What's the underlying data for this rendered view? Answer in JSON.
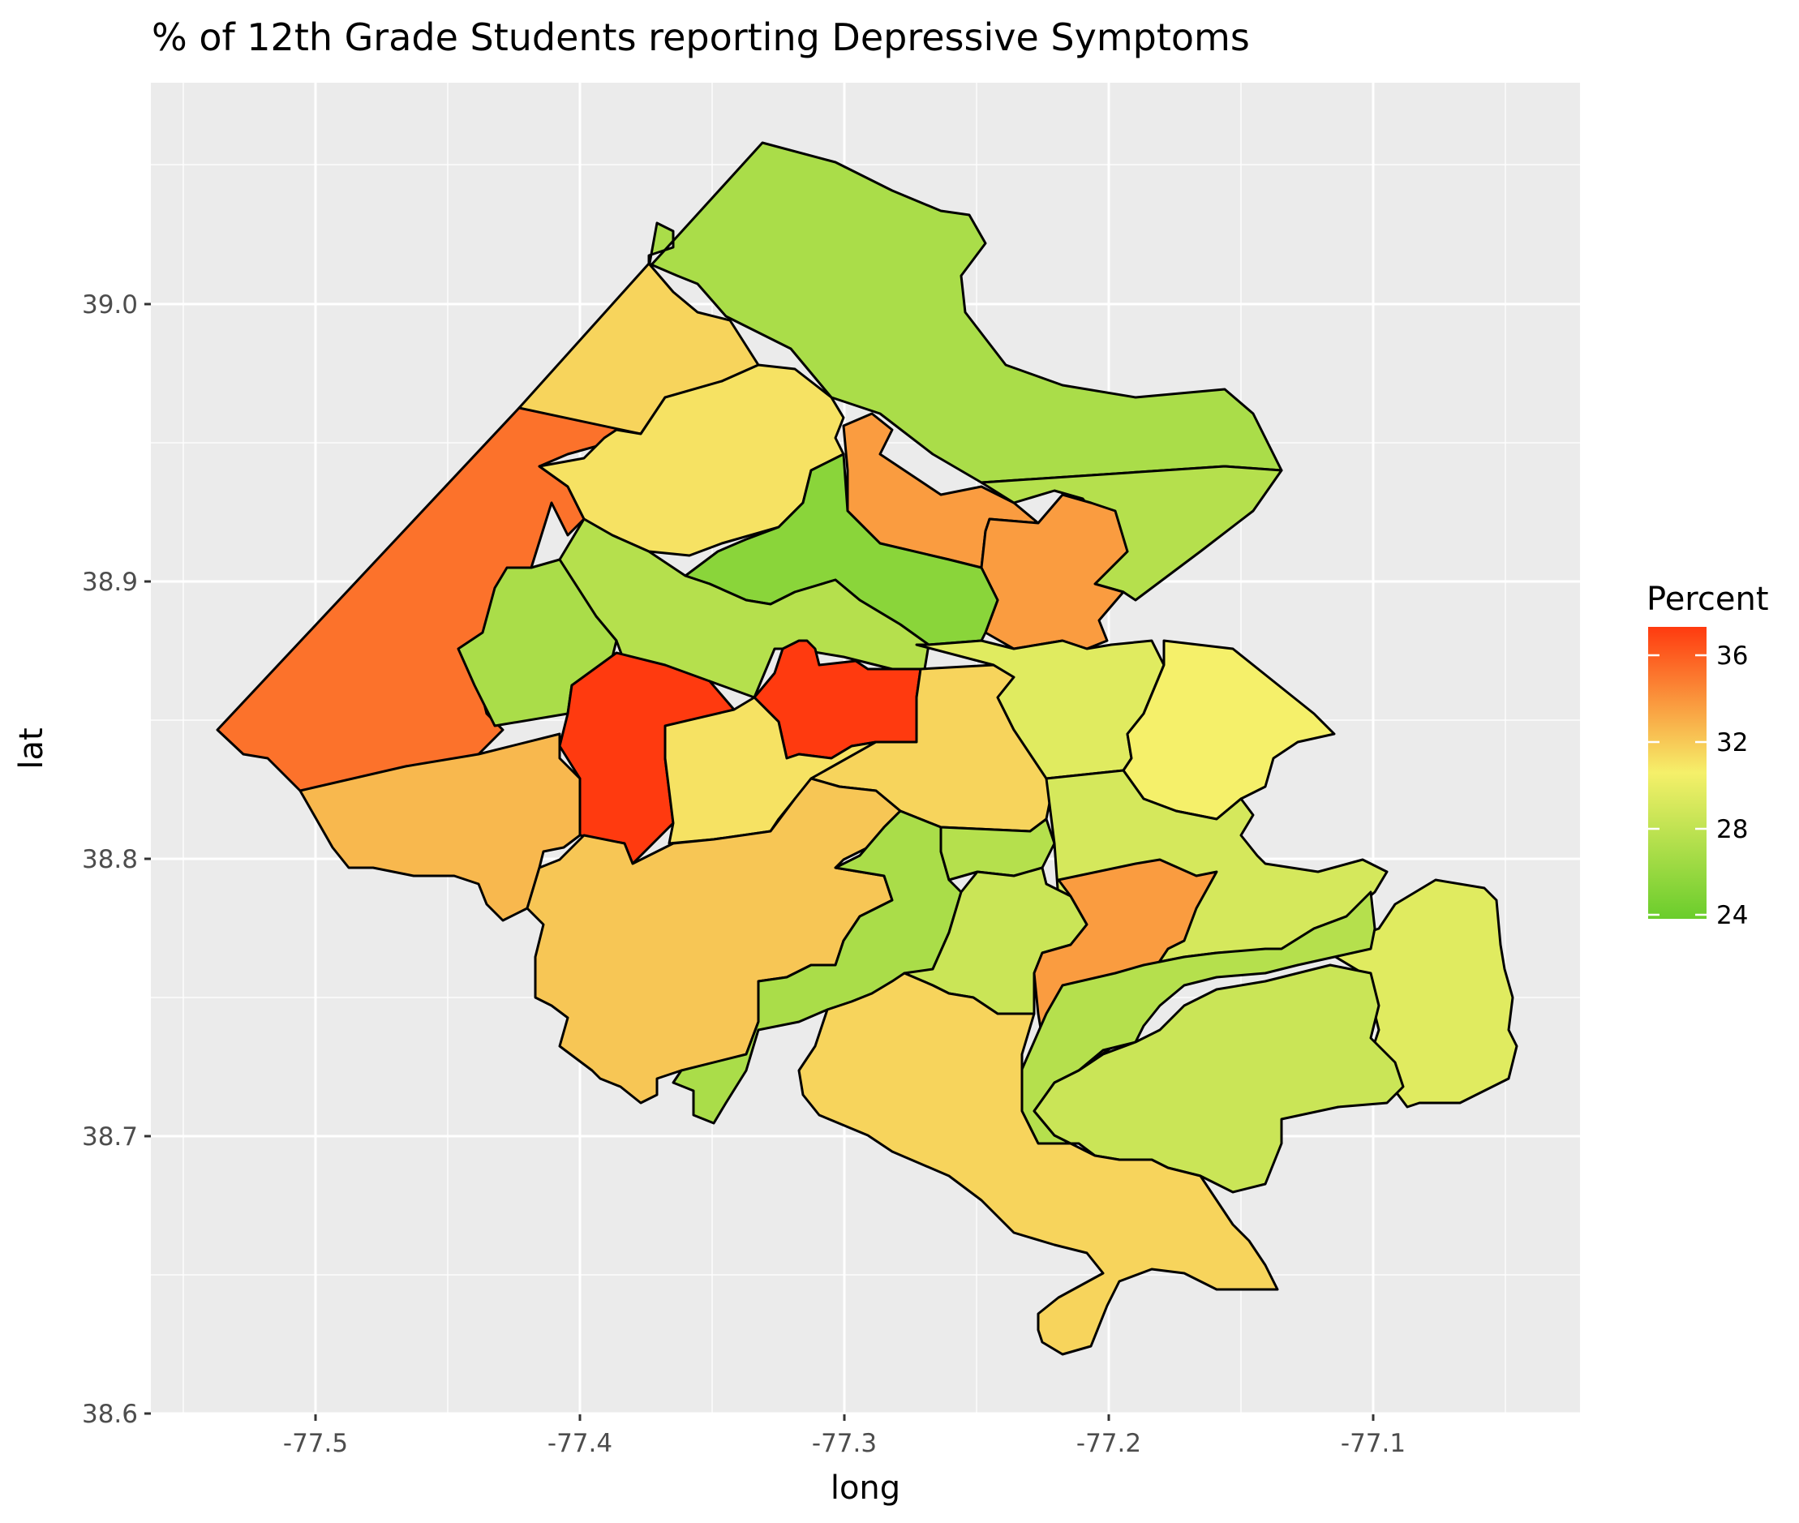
{
  "title": "% of 12th Grade Students reporting Depressive Symptoms",
  "x_axis": {
    "label": "long",
    "ticks": [
      "-77.5",
      "-77.4",
      "-77.3",
      "-77.2",
      "-77.1"
    ]
  },
  "y_axis": {
    "label": "lat",
    "ticks": [
      "39.0",
      "38.9",
      "38.8",
      "38.7",
      "38.6"
    ]
  },
  "legend": {
    "title": "Percent",
    "labels": [
      "36",
      "32",
      "28",
      "24"
    ],
    "colors": {
      "low": "#6acd2c",
      "mid": "#f5f06a",
      "high": "#ff3a0f"
    }
  },
  "chart_data": {
    "type": "choropleth",
    "title": "% of 12th Grade Students reporting Depressive Symptoms",
    "xlabel": "long",
    "ylabel": "lat",
    "xlim": [
      -77.55,
      -77.01
    ],
    "ylim": [
      38.6,
      39.06
    ],
    "grid": true,
    "legend_position": "right",
    "fill_scale": {
      "name": "Percent",
      "low": 24,
      "high": 37,
      "colors": [
        "#6acd2c",
        "#f5f06a",
        "#ff3a0f"
      ]
    },
    "regions": [
      {
        "id": "far-north",
        "percent": 27.0
      },
      {
        "id": "north-west-orange",
        "percent": 31.5
      },
      {
        "id": "west-large",
        "percent": 35.0
      },
      {
        "id": "north-yellow",
        "percent": 31.0
      },
      {
        "id": "north-central-orange",
        "percent": 33.5
      },
      {
        "id": "north-east-strip",
        "percent": 27.5
      },
      {
        "id": "east-orange",
        "percent": 33.5
      },
      {
        "id": "central-green",
        "percent": 25.5
      },
      {
        "id": "west-green-1",
        "percent": 27.5
      },
      {
        "id": "west-green-2",
        "percent": 27.0
      },
      {
        "id": "red-west",
        "percent": 37.0
      },
      {
        "id": "red-central",
        "percent": 37.0
      },
      {
        "id": "southwest-orange",
        "percent": 32.5
      },
      {
        "id": "central-yellow",
        "percent": 31.0
      },
      {
        "id": "central-east-yellow",
        "percent": 31.5
      },
      {
        "id": "east-yellow-1",
        "percent": 29.5
      },
      {
        "id": "east-yellow-2",
        "percent": 30.5
      },
      {
        "id": "south-central-large",
        "percent": 32.0
      },
      {
        "id": "green-strip-south",
        "percent": 27.0
      },
      {
        "id": "small-green",
        "percent": 27.5
      },
      {
        "id": "east-light",
        "percent": 29.0
      },
      {
        "id": "south-light",
        "percent": 28.5
      },
      {
        "id": "mid-orange-south",
        "percent": 33.5
      },
      {
        "id": "far-east",
        "percent": 29.5
      },
      {
        "id": "south-green",
        "percent": 27.5
      },
      {
        "id": "south-green-2",
        "percent": 28.5
      },
      {
        "id": "south-tail",
        "percent": 31.5
      }
    ]
  }
}
